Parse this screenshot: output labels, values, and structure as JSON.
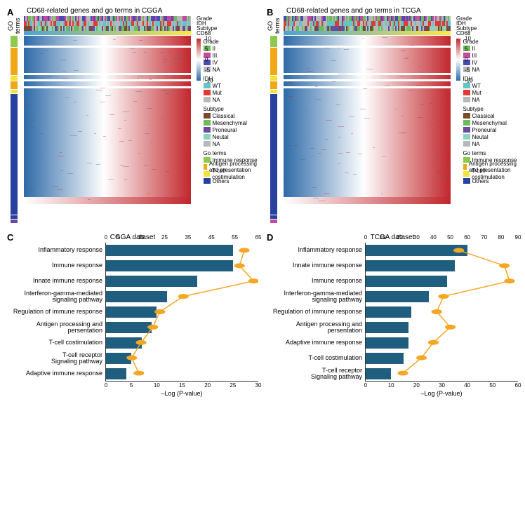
{
  "colors": {
    "bar_fill": "#1f5e7e",
    "line_orange": "#f5a623",
    "axis": "#333333",
    "heat_high": "#c1272d",
    "heat_mid": "#ffffff",
    "heat_low": "#2e6aa8",
    "cd68_grad_low": "#4aa3d6",
    "cd68_grad_high": "#ffe843"
  },
  "legends": {
    "grade": {
      "title": "Grade",
      "items": [
        {
          "label": "II",
          "color": "#6dbb5a"
        },
        {
          "label": "III",
          "color": "#c44aa0"
        },
        {
          "label": "IV",
          "color": "#4a4ab0"
        },
        {
          "label": "NA",
          "color": "#b8b8b8"
        }
      ]
    },
    "idh": {
      "title": "IDH",
      "items": [
        {
          "label": "WT",
          "color": "#63c4c8"
        },
        {
          "label": "Mut",
          "color": "#e13a32"
        },
        {
          "label": "NA",
          "color": "#b8b8b8"
        }
      ]
    },
    "subtype": {
      "title": "Subtype",
      "items": [
        {
          "label": "Classical",
          "color": "#7a4a2c"
        },
        {
          "label": "Mesenchymal",
          "color": "#6dbb5a"
        },
        {
          "label": "Proneural",
          "color": "#6a4a9e"
        },
        {
          "label": "Neutal",
          "color": "#8cd3c0"
        },
        {
          "label": "NA",
          "color": "#b8b8b8"
        }
      ]
    },
    "go": {
      "title": "Go terms",
      "items": [
        {
          "label": "Immune response",
          "color": "#8cca4f"
        },
        {
          "label": "Antigen processing and presentation",
          "color": "#f0a818"
        },
        {
          "label": "T-cell costimulation",
          "color": "#f2e33c"
        },
        {
          "label": "Others",
          "color": "#2840a0"
        }
      ]
    }
  },
  "scale": {
    "ticks": [
      {
        "v": 10,
        "pos": 0
      },
      {
        "v": 5,
        "pos": 0.25
      },
      {
        "v": 0,
        "pos": 0.5
      },
      {
        "v": -5,
        "pos": 0.75
      },
      {
        "v": -10,
        "pos": 1
      }
    ]
  },
  "panelA": {
    "letter": "A",
    "title": "CD68-related genes and go terms in CGGA",
    "anno_labels": [
      "Grade",
      "IDH",
      "Subtype",
      "CD68"
    ],
    "go_segments": [
      {
        "color": "#8cca4f",
        "h": 0.06
      },
      {
        "color": "#f0a818",
        "h": 0.15
      },
      {
        "color": "#f2e33c",
        "h": 0.03
      },
      {
        "color": "#f0a818",
        "h": 0.04
      },
      {
        "color": "#f2e33c",
        "h": 0.02
      },
      {
        "color": "#2840a0",
        "h": 0.66
      },
      {
        "color": "#2840a0",
        "h": 0.02
      },
      {
        "color": "#6a4a9e",
        "h": 0.02
      }
    ]
  },
  "panelB": {
    "letter": "B",
    "title": "CD68-related genes and go terms in TCGA",
    "anno_labels": [
      "Grade",
      "IDH",
      "Subtype",
      "CD68"
    ],
    "go_segments": [
      {
        "color": "#8cca4f",
        "h": 0.06
      },
      {
        "color": "#f0a818",
        "h": 0.15
      },
      {
        "color": "#f2e33c",
        "h": 0.03
      },
      {
        "color": "#f0a818",
        "h": 0.04
      },
      {
        "color": "#f2e33c",
        "h": 0.02
      },
      {
        "color": "#2840a0",
        "h": 0.66
      },
      {
        "color": "#2840a0",
        "h": 0.02
      },
      {
        "color": "#c44aa0",
        "h": 0.02
      }
    ]
  },
  "panelC": {
    "letter": "C",
    "title": "CGGA dataset",
    "xlabel": "–Log (P-value)",
    "bottom_ticks": [
      0,
      5,
      10,
      15,
      20,
      25,
      30
    ],
    "bottom_max": 30,
    "top_ticks": [
      0,
      5,
      15,
      25,
      35,
      45,
      55,
      65
    ],
    "top_max": 65,
    "categories": [
      {
        "label": "Inflammatory response",
        "bar": 25,
        "pt": 59
      },
      {
        "label": "Immune response",
        "bar": 25,
        "pt": 57
      },
      {
        "label": "Innate immune response",
        "bar": 18,
        "pt": 63
      },
      {
        "label": "Interferon-gamma-mediated signaling pathway",
        "bar": 12,
        "pt": 33
      },
      {
        "label": "Regulation of immune response",
        "bar": 10,
        "pt": 23
      },
      {
        "label": "Antigen processing and persentation",
        "bar": 9,
        "pt": 20
      },
      {
        "label": "T-cell costimulation",
        "bar": 7,
        "pt": 15
      },
      {
        "label": "T-cell receptor Signaling pathway",
        "bar": 5,
        "pt": 11
      },
      {
        "label": "Adaptive immune response",
        "bar": 4,
        "pt": 14
      }
    ]
  },
  "panelD": {
    "letter": "D",
    "title": "TCGA dataset",
    "xlabel": "–Log (P-value)",
    "bottom_ticks": [
      0,
      10,
      20,
      30,
      40,
      50,
      60
    ],
    "bottom_max": 60,
    "top_ticks": [
      0,
      10,
      20,
      30,
      40,
      50,
      60,
      70,
      80,
      90
    ],
    "top_max": 90,
    "categories": [
      {
        "label": "Inflammatory response",
        "bar": 40,
        "pt": 55
      },
      {
        "label": "Innate immune response",
        "bar": 35,
        "pt": 82
      },
      {
        "label": "Immune response",
        "bar": 32,
        "pt": 85
      },
      {
        "label": "Interferon-gamma-mediated signaling pathway",
        "bar": 25,
        "pt": 46
      },
      {
        "label": "Regulation of immune response",
        "bar": 18,
        "pt": 42
      },
      {
        "label": "Antigen processing and persentation",
        "bar": 17,
        "pt": 50
      },
      {
        "label": "Adaptive immune response",
        "bar": 17,
        "pt": 40
      },
      {
        "label": "T-cell costimulation",
        "bar": 15,
        "pt": 33
      },
      {
        "label": "T-cell receptor Signaling pathway",
        "bar": 10,
        "pt": 22
      }
    ]
  }
}
